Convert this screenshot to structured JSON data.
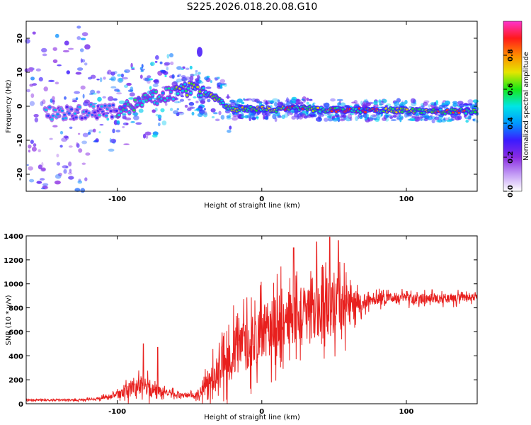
{
  "title": "S225.2026.018.20.08.G10",
  "colors": {
    "background": "#ffffff",
    "snr_line": "#e8201e",
    "spectrogram_zero": "#ffffff",
    "colormap": [
      "#ffffff",
      "#c39cf5",
      "#8a2be2",
      "#3b1bff",
      "#0099ff",
      "#00e5e5",
      "#17e817",
      "#e5e500",
      "#ff8a00",
      "#ff1a1a",
      "#ff33cc"
    ]
  },
  "chart_data": [
    {
      "type": "heatmap",
      "xlabel": "Height of straight line (km)",
      "ylabel": "Frequency (Hz)",
      "xlim": [
        -163,
        149
      ],
      "ylim": [
        -25,
        25
      ],
      "xticks": [
        -100,
        0,
        100
      ],
      "xtick_labels": [
        "-100",
        "0",
        "100"
      ],
      "yticks": [
        -20,
        -10,
        0,
        10,
        20
      ],
      "ytick_labels": [
        "-20",
        "-10",
        "0",
        "10",
        "20"
      ],
      "colorbar": {
        "label": "Normalized spectral amplitude",
        "range": [
          0,
          1
        ],
        "ticks": [
          "0.0",
          "0.2",
          "0.4",
          "0.6",
          "0.8"
        ]
      },
      "ridge": {
        "x": [
          -163,
          -140,
          -120,
          -110,
          -100,
          -90,
          -80,
          -70,
          -60,
          -50,
          -40,
          -35,
          -30,
          -25,
          -20,
          -15,
          -10,
          -5,
          0,
          10,
          20,
          30,
          40,
          50,
          60,
          80,
          100,
          120,
          149
        ],
        "freq": [
          -2,
          -2,
          -1.5,
          -1.5,
          -1,
          0,
          2,
          3,
          4,
          5,
          4,
          3,
          2,
          0,
          -1,
          -1,
          -0.8,
          -0.8,
          -0.8,
          -1,
          -0.5,
          -0.5,
          -1,
          -1,
          -1.2,
          -1.2,
          -1.2,
          -1.5,
          -1.5
        ]
      }
    },
    {
      "type": "line",
      "xlabel": "Height of straight line (km)",
      "ylabel": "SNR (10 * v/v)",
      "xlim": [
        -163,
        149
      ],
      "ylim": [
        0,
        1400
      ],
      "xticks": [
        -100,
        0,
        100
      ],
      "xtick_labels": [
        "-100",
        "0",
        "100"
      ],
      "yticks": [
        0,
        200,
        400,
        600,
        800,
        1000,
        1200,
        1400
      ],
      "ytick_labels": [
        "0",
        "200",
        "400",
        "600",
        "800",
        "1000",
        "1200",
        "1400"
      ],
      "envelope": {
        "x": [
          -163,
          -130,
          -115,
          -105,
          -95,
          -88,
          -82,
          -78,
          -72,
          -66,
          -60,
          -55,
          -50,
          -45,
          -40,
          -35,
          -30,
          -25,
          -20,
          -15,
          -10,
          -5,
          0,
          5,
          10,
          15,
          20,
          25,
          30,
          35,
          40,
          45,
          50,
          55,
          60,
          65,
          70,
          75,
          80,
          90,
          100,
          110,
          120,
          130,
          140,
          149
        ],
        "base": [
          30,
          30,
          40,
          60,
          90,
          140,
          150,
          130,
          110,
          95,
          80,
          70,
          70,
          80,
          120,
          200,
          280,
          360,
          420,
          460,
          500,
          540,
          580,
          620,
          660,
          700,
          720,
          740,
          760,
          760,
          780,
          800,
          820,
          820,
          820,
          830,
          850,
          870,
          880,
          880,
          880,
          880,
          880,
          880,
          880,
          880
        ],
        "amp": [
          15,
          15,
          20,
          40,
          90,
          180,
          120,
          160,
          90,
          60,
          50,
          40,
          40,
          60,
          140,
          250,
          320,
          380,
          420,
          440,
          440,
          440,
          450,
          460,
          500,
          480,
          460,
          440,
          440,
          460,
          480,
          500,
          480,
          420,
          380,
          200,
          130,
          110,
          100,
          90,
          90,
          80,
          80,
          80,
          70,
          60
        ]
      },
      "peaks": [
        {
          "x": -82,
          "y": 500
        },
        {
          "x": -72,
          "y": 470
        },
        {
          "x": 22,
          "y": 1300
        },
        {
          "x": 38,
          "y": 1350
        },
        {
          "x": 47,
          "y": 1390
        },
        {
          "x": 53,
          "y": 1360
        }
      ]
    }
  ]
}
